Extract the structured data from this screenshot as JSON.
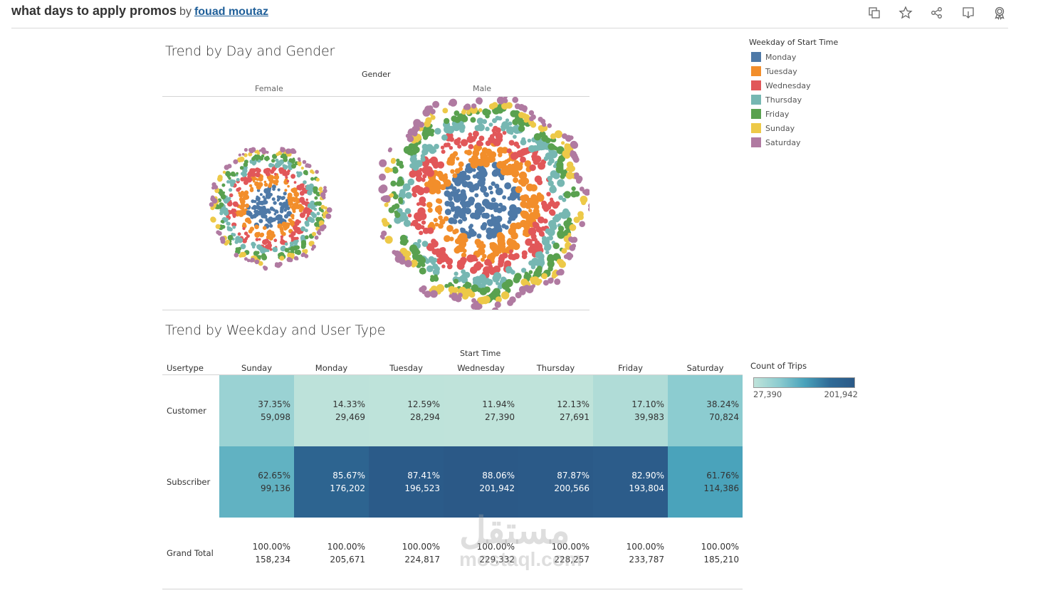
{
  "header": {
    "title": "what days to apply promos",
    "by": "by",
    "author": "fouad moutaz",
    "icons": [
      "duplicate-icon",
      "favorite-star-icon",
      "share-icon",
      "download-icon",
      "award-icon"
    ]
  },
  "sheet1": {
    "title": "Trend by Day and Gender",
    "column_header": "Gender",
    "columns": [
      "Female",
      "Male"
    ]
  },
  "legend": {
    "title": "Weekday of Start Time",
    "items": [
      {
        "label": "Monday",
        "color": "#4e79a7"
      },
      {
        "label": "Tuesday",
        "color": "#f28e2b"
      },
      {
        "label": "Wednesday",
        "color": "#e15759"
      },
      {
        "label": "Thursday",
        "color": "#76b7b2"
      },
      {
        "label": "Friday",
        "color": "#59a14f"
      },
      {
        "label": "Sunday",
        "color": "#edc948"
      },
      {
        "label": "Saturday",
        "color": "#b07aa1"
      }
    ]
  },
  "sheet2": {
    "title": "Trend by Weekday and User Type",
    "column_group": "Start Time",
    "row_header": "Usertype",
    "days": [
      "Sunday",
      "Monday",
      "Tuesday",
      "Wednesday",
      "Thursday",
      "Friday",
      "Saturday"
    ],
    "rows": [
      {
        "label": "Customer",
        "pct": [
          "37.35%",
          "14.33%",
          "12.59%",
          "11.94%",
          "12.13%",
          "17.10%",
          "38.24%"
        ],
        "count": [
          "59,098",
          "29,469",
          "28,294",
          "27,390",
          "27,691",
          "39,983",
          "70,824"
        ]
      },
      {
        "label": "Subscriber",
        "pct": [
          "62.65%",
          "85.67%",
          "87.41%",
          "88.06%",
          "87.87%",
          "82.90%",
          "61.76%"
        ],
        "count": [
          "99,136",
          "176,202",
          "196,523",
          "201,942",
          "200,566",
          "193,804",
          "114,386"
        ]
      }
    ],
    "grand_total": {
      "label": "Grand Total",
      "pct": [
        "100.00%",
        "100.00%",
        "100.00%",
        "100.00%",
        "100.00%",
        "100.00%",
        "100.00%"
      ],
      "count": [
        "158,234",
        "205,671",
        "224,817",
        "229,332",
        "228,257",
        "233,787",
        "185,210"
      ]
    }
  },
  "color_legend": {
    "title": "Count of Trips",
    "min": "27,390",
    "max": "201,942"
  },
  "watermark": {
    "arabic": "مستقل",
    "latin": "mostaql.com"
  },
  "chart_data": [
    {
      "type": "scatter",
      "subtype": "packed-bubbles",
      "title": "Trend by Day and Gender",
      "facet": "Gender",
      "facets": [
        "Female",
        "Male"
      ],
      "color_by": "Weekday of Start Time",
      "ring_order_inner_to_outer": [
        "Monday",
        "Tuesday",
        "Wednesday",
        "Thursday",
        "Friday",
        "Sunday",
        "Saturday"
      ],
      "relative_size": {
        "Female": 0.55,
        "Male": 1.0
      }
    },
    {
      "type": "heatmap",
      "title": "Trend by Weekday and User Type",
      "x": [
        "Sunday",
        "Monday",
        "Tuesday",
        "Wednesday",
        "Thursday",
        "Friday",
        "Saturday"
      ],
      "y": [
        "Customer",
        "Subscriber"
      ],
      "values": [
        [
          59098,
          29469,
          28294,
          27390,
          27691,
          39983,
          70824
        ],
        [
          99136,
          176202,
          196523,
          201942,
          200566,
          193804,
          114386
        ]
      ],
      "percent_of_column": [
        [
          37.35,
          14.33,
          12.59,
          11.94,
          12.13,
          17.1,
          38.24
        ],
        [
          62.65,
          85.67,
          87.41,
          88.06,
          87.87,
          82.9,
          61.76
        ]
      ],
      "totals": [
        158234,
        205671,
        224817,
        229332,
        228257,
        233787,
        185210
      ],
      "color_range": [
        27390,
        201942
      ],
      "legend": "right"
    }
  ]
}
